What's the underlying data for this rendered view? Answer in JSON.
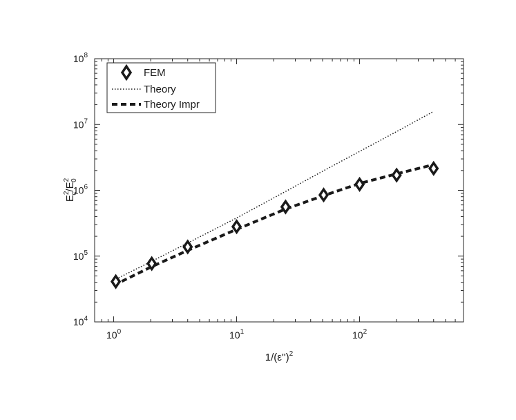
{
  "chart_data": {
    "type": "line",
    "xscale": "log",
    "yscale": "log",
    "xlim": [
      0.7,
      700
    ],
    "ylim": [
      10000,
      100000000
    ],
    "grid": false,
    "legend_position": "top-left",
    "xlabel": {
      "base": "1/(ε'')",
      "sup": "2"
    },
    "ylabel": {
      "a": "E",
      "a_sup": "2",
      "a_sub": "c",
      "sep": "/",
      "b": "E",
      "b_sup": "2",
      "b_sub": "0"
    },
    "xticks": [
      {
        "value": 1,
        "base": "10",
        "exp": "0"
      },
      {
        "value": 10,
        "base": "10",
        "exp": "1"
      },
      {
        "value": 100,
        "base": "10",
        "exp": "2"
      }
    ],
    "yticks": [
      {
        "value": 10000,
        "base": "10",
        "exp": "4"
      },
      {
        "value": 100000,
        "base": "10",
        "exp": "5"
      },
      {
        "value": 1000000,
        "base": "10",
        "exp": "6"
      },
      {
        "value": 10000000,
        "base": "10",
        "exp": "7"
      },
      {
        "value": 100000000,
        "base": "10",
        "exp": "8"
      }
    ],
    "series": [
      {
        "name": "FEM",
        "style": "markers-diamond",
        "x": [
          1.04,
          2.04,
          4,
          10,
          25,
          51,
          100,
          200,
          400
        ],
        "y": [
          41000,
          77000,
          138000,
          280000,
          560000,
          850000,
          1230000,
          1700000,
          2150000
        ]
      },
      {
        "name": "Theory",
        "style": "dotted",
        "x": [
          1,
          2,
          4,
          10,
          25,
          50,
          100,
          200,
          400
        ],
        "y": [
          43000,
          82000,
          158000,
          380000,
          960000,
          1950000,
          3900000,
          7800000,
          15800000
        ]
      },
      {
        "name": "Theory Impr",
        "style": "dashed",
        "x": [
          1,
          2,
          4,
          10,
          25,
          50,
          100,
          200,
          400
        ],
        "y": [
          36000,
          68000,
          122000,
          255000,
          520000,
          820000,
          1270000,
          1780000,
          2450000
        ]
      }
    ]
  }
}
